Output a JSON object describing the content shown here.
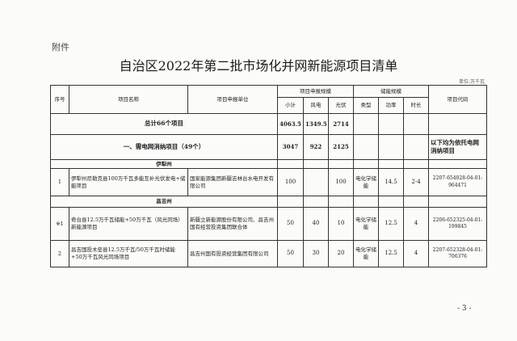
{
  "attachment_label": "附件",
  "title": "自治区2022年第二批市场化并网新能源项目清单",
  "unit": "单位:万千瓦",
  "headers": {
    "no": "序号",
    "name": "项目名称",
    "unit": "项目申报单位",
    "scale": "项目申报规模",
    "subtotal": "小计",
    "wind": "风电",
    "solar": "光伏",
    "storage": "储能规模",
    "type": "类型",
    "power": "功率",
    "duration": "时长",
    "code": "项目代码"
  },
  "total": {
    "label": "总计66个项目",
    "subtotal": "4063.5",
    "wind": "1349.5",
    "solar": "2714"
  },
  "section1": {
    "label": "一、需电网消纳项目（49个）",
    "subtotal": "3047",
    "wind": "922",
    "solar": "2125",
    "note": "以下均为依托电网消纳项目"
  },
  "regions": [
    "伊犁州",
    "昌吉州"
  ],
  "rows": [
    {
      "no": "1",
      "name": "伊犁州尼勒克县100万千瓦多能互补光伏发电+储能项目",
      "unit": "国家能源集团新疆吉林台水电开发有限公司",
      "subtotal": "100",
      "wind": "",
      "solar": "100",
      "type": "电化学储能",
      "power": "14.5",
      "duration": "2-4",
      "code": "2207-654028-04-01-964471"
    },
    {
      "no": "※1",
      "name": "奇台县12.5万千瓦储能+50万千瓦（风光同场）新能源项目",
      "unit": "新疆立新能源股份有限公司、昌吉州国有经营投资集团联合体",
      "subtotal": "50",
      "wind": "40",
      "solar": "10",
      "type": "电化学储能",
      "power": "12.5",
      "duration": "4",
      "code": "2206-652325-04-01-199845"
    },
    {
      "no": "2",
      "name": "昌吉国投木垒县12.5万千瓦/50万千瓦时储能+50万千瓦风光同场项目",
      "unit": "昌吉州国有投资经营集团有限公司",
      "subtotal": "50",
      "wind": "30",
      "solar": "20",
      "type": "电化学储能",
      "power": "12.5",
      "duration": "4",
      "code": "2207-652328-04-01-706376"
    }
  ],
  "page_number": "- 3 -"
}
